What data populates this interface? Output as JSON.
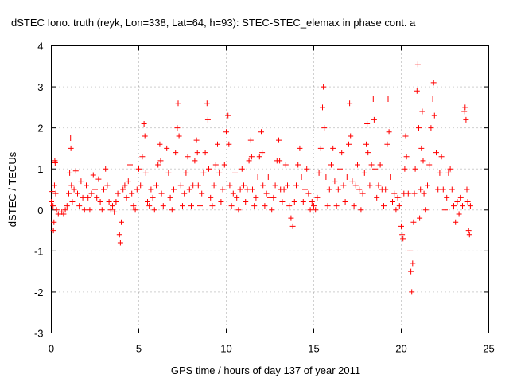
{
  "chart_data": {
    "type": "scatter",
    "title": "dSTEC Iono. truth (reyk, Lon=338, Lat=64, h=93): STEC-STEC_elemax in phase cont. a",
    "xlabel": "GPS time / hours of day 137 of year 2011",
    "ylabel": "dSTEC  / TECUs",
    "xlim": [
      0,
      25
    ],
    "ylim": [
      -3,
      4
    ],
    "xticks": [
      "0",
      "5",
      "10",
      "15",
      "20",
      "25"
    ],
    "yticks": [
      "-3",
      "-2",
      "-1",
      "0",
      "1",
      "2",
      "3",
      "4"
    ],
    "grid": true,
    "marker": "+",
    "series": [
      {
        "color": "#ff0000",
        "points": [
          [
            0.0,
            0.2
          ],
          [
            0.05,
            0.45
          ],
          [
            0.1,
            0.1
          ],
          [
            0.12,
            -0.5
          ],
          [
            0.15,
            -0.3
          ],
          [
            0.18,
            0.6
          ],
          [
            0.2,
            1.2
          ],
          [
            0.22,
            1.15
          ],
          [
            0.25,
            0.4
          ],
          [
            0.3,
            0.0
          ],
          [
            0.4,
            -0.1
          ],
          [
            0.5,
            -0.15
          ],
          [
            0.6,
            -0.05
          ],
          [
            0.7,
            -0.1
          ],
          [
            0.8,
            0.0
          ],
          [
            0.9,
            0.1
          ],
          [
            1.0,
            0.4
          ],
          [
            1.05,
            0.9
          ],
          [
            1.1,
            1.75
          ],
          [
            1.12,
            1.5
          ],
          [
            1.15,
            0.6
          ],
          [
            1.2,
            0.2
          ],
          [
            1.3,
            0.5
          ],
          [
            1.4,
            0.95
          ],
          [
            1.5,
            0.4
          ],
          [
            1.6,
            0.1
          ],
          [
            1.7,
            0.7
          ],
          [
            1.8,
            0.3
          ],
          [
            1.9,
            0.0
          ],
          [
            2.0,
            0.6
          ],
          [
            2.1,
            0.3
          ],
          [
            2.2,
            0.0
          ],
          [
            2.3,
            0.4
          ],
          [
            2.4,
            0.85
          ],
          [
            2.5,
            0.5
          ],
          [
            2.6,
            0.3
          ],
          [
            2.7,
            0.75
          ],
          [
            2.8,
            0.2
          ],
          [
            2.9,
            0.0
          ],
          [
            3.0,
            0.5
          ],
          [
            3.1,
            1.0
          ],
          [
            3.2,
            0.6
          ],
          [
            3.3,
            0.2
          ],
          [
            3.4,
            0.0
          ],
          [
            3.5,
            0.1
          ],
          [
            3.6,
            -0.05
          ],
          [
            3.7,
            0.2
          ],
          [
            3.8,
            0.4
          ],
          [
            3.9,
            -0.6
          ],
          [
            3.95,
            -0.8
          ],
          [
            4.0,
            -0.3
          ],
          [
            4.1,
            0.5
          ],
          [
            4.2,
            0.6
          ],
          [
            4.3,
            0.3
          ],
          [
            4.4,
            0.7
          ],
          [
            4.5,
            1.1
          ],
          [
            4.6,
            0.4
          ],
          [
            4.7,
            0.1
          ],
          [
            4.8,
            0.0
          ],
          [
            4.9,
            0.5
          ],
          [
            5.0,
            1.0
          ],
          [
            5.1,
            0.6
          ],
          [
            5.2,
            1.3
          ],
          [
            5.3,
            2.1
          ],
          [
            5.35,
            1.8
          ],
          [
            5.4,
            0.9
          ],
          [
            5.5,
            0.2
          ],
          [
            5.6,
            0.1
          ],
          [
            5.7,
            0.5
          ],
          [
            5.8,
            0.3
          ],
          [
            5.9,
            0.0
          ],
          [
            6.0,
            0.6
          ],
          [
            6.1,
            1.1
          ],
          [
            6.2,
            1.6
          ],
          [
            6.25,
            1.2
          ],
          [
            6.3,
            0.4
          ],
          [
            6.4,
            0.1
          ],
          [
            6.5,
            0.8
          ],
          [
            6.6,
            1.5
          ],
          [
            6.7,
            0.9
          ],
          [
            6.8,
            0.3
          ],
          [
            6.9,
            0.0
          ],
          [
            7.0,
            0.5
          ],
          [
            7.1,
            1.4
          ],
          [
            7.2,
            2.0
          ],
          [
            7.25,
            2.6
          ],
          [
            7.3,
            1.8
          ],
          [
            7.4,
            0.6
          ],
          [
            7.5,
            0.1
          ],
          [
            7.6,
            0.4
          ],
          [
            7.7,
            0.9
          ],
          [
            7.8,
            1.3
          ],
          [
            7.9,
            0.5
          ],
          [
            8.0,
            0.1
          ],
          [
            8.1,
            0.6
          ],
          [
            8.2,
            1.2
          ],
          [
            8.3,
            1.7
          ],
          [
            8.35,
            1.4
          ],
          [
            8.4,
            0.6
          ],
          [
            8.5,
            0.1
          ],
          [
            8.6,
            0.4
          ],
          [
            8.7,
            0.9
          ],
          [
            8.8,
            1.4
          ],
          [
            8.9,
            2.6
          ],
          [
            8.95,
            2.2
          ],
          [
            9.0,
            1.0
          ],
          [
            9.1,
            0.3
          ],
          [
            9.2,
            0.1
          ],
          [
            9.3,
            0.6
          ],
          [
            9.4,
            1.1
          ],
          [
            9.5,
            1.6
          ],
          [
            9.6,
            0.9
          ],
          [
            9.7,
            0.2
          ],
          [
            9.8,
            0.5
          ],
          [
            9.9,
            1.1
          ],
          [
            10.0,
            1.9
          ],
          [
            10.1,
            2.3
          ],
          [
            10.15,
            1.6
          ],
          [
            10.2,
            0.6
          ],
          [
            10.3,
            0.1
          ],
          [
            10.4,
            0.4
          ],
          [
            10.5,
            0.9
          ],
          [
            10.6,
            0.3
          ],
          [
            10.7,
            0.0
          ],
          [
            10.8,
            0.5
          ],
          [
            10.9,
            1.0
          ],
          [
            11.0,
            0.6
          ],
          [
            11.1,
            0.2
          ],
          [
            11.2,
            0.5
          ],
          [
            11.3,
            1.2
          ],
          [
            11.4,
            1.7
          ],
          [
            11.45,
            1.3
          ],
          [
            11.5,
            0.5
          ],
          [
            11.6,
            0.1
          ],
          [
            11.7,
            0.3
          ],
          [
            11.8,
            0.8
          ],
          [
            11.9,
            1.3
          ],
          [
            12.0,
            1.9
          ],
          [
            12.05,
            1.4
          ],
          [
            12.1,
            0.6
          ],
          [
            12.2,
            0.1
          ],
          [
            12.3,
            0.4
          ],
          [
            12.4,
            0.8
          ],
          [
            12.5,
            0.3
          ],
          [
            12.6,
            0.0
          ],
          [
            12.7,
            0.3
          ],
          [
            12.8,
            0.6
          ],
          [
            12.9,
            1.2
          ],
          [
            13.0,
            1.7
          ],
          [
            13.05,
            1.2
          ],
          [
            13.1,
            0.5
          ],
          [
            13.2,
            0.2
          ],
          [
            13.3,
            0.5
          ],
          [
            13.4,
            1.1
          ],
          [
            13.5,
            0.6
          ],
          [
            13.6,
            0.1
          ],
          [
            13.7,
            -0.2
          ],
          [
            13.8,
            -0.4
          ],
          [
            13.9,
            0.2
          ],
          [
            14.0,
            0.6
          ],
          [
            14.1,
            1.1
          ],
          [
            14.2,
            1.5
          ],
          [
            14.3,
            0.8
          ],
          [
            14.4,
            0.2
          ],
          [
            14.5,
            0.5
          ],
          [
            14.6,
            1.0
          ],
          [
            14.7,
            0.4
          ],
          [
            14.8,
            0.0
          ],
          [
            14.9,
            0.2
          ],
          [
            15.0,
            0.1
          ],
          [
            15.1,
            0.0
          ],
          [
            15.2,
            0.3
          ],
          [
            15.3,
            0.9
          ],
          [
            15.4,
            1.5
          ],
          [
            15.5,
            2.5
          ],
          [
            15.55,
            3.0
          ],
          [
            15.6,
            2.0
          ],
          [
            15.7,
            0.8
          ],
          [
            15.8,
            0.1
          ],
          [
            15.9,
            0.5
          ],
          [
            16.0,
            1.1
          ],
          [
            16.1,
            1.5
          ],
          [
            16.2,
            0.7
          ],
          [
            16.3,
            0.1
          ],
          [
            16.4,
            0.5
          ],
          [
            16.5,
            1.0
          ],
          [
            16.6,
            1.4
          ],
          [
            16.7,
            0.6
          ],
          [
            16.8,
            0.2
          ],
          [
            16.9,
            0.8
          ],
          [
            17.0,
            1.6
          ],
          [
            17.05,
            2.6
          ],
          [
            17.1,
            1.8
          ],
          [
            17.2,
            0.7
          ],
          [
            17.3,
            0.1
          ],
          [
            17.4,
            0.6
          ],
          [
            17.5,
            1.1
          ],
          [
            17.6,
            0.5
          ],
          [
            17.7,
            0.0
          ],
          [
            17.8,
            0.4
          ],
          [
            17.9,
            0.9
          ],
          [
            18.0,
            1.6
          ],
          [
            18.05,
            2.1
          ],
          [
            18.1,
            1.4
          ],
          [
            18.2,
            0.6
          ],
          [
            18.3,
            1.1
          ],
          [
            18.4,
            2.7
          ],
          [
            18.45,
            2.2
          ],
          [
            18.5,
            1.0
          ],
          [
            18.6,
            0.3
          ],
          [
            18.7,
            0.6
          ],
          [
            18.8,
            1.1
          ],
          [
            18.9,
            0.5
          ],
          [
            19.0,
            0.1
          ],
          [
            19.1,
            0.5
          ],
          [
            19.2,
            1.6
          ],
          [
            19.25,
            2.7
          ],
          [
            19.3,
            1.9
          ],
          [
            19.4,
            0.8
          ],
          [
            19.5,
            0.2
          ],
          [
            19.6,
            0.4
          ],
          [
            19.7,
            0.0
          ],
          [
            19.8,
            0.3
          ],
          [
            19.9,
            0.1
          ],
          [
            20.0,
            -0.4
          ],
          [
            20.05,
            -0.6
          ],
          [
            20.1,
            -0.7
          ],
          [
            20.15,
            0.4
          ],
          [
            20.2,
            1.0
          ],
          [
            20.25,
            1.8
          ],
          [
            20.3,
            1.3
          ],
          [
            20.4,
            0.4
          ],
          [
            20.5,
            -1.0
          ],
          [
            20.55,
            -1.5
          ],
          [
            20.6,
            -2.0
          ],
          [
            20.65,
            -1.3
          ],
          [
            20.7,
            -0.3
          ],
          [
            20.75,
            0.4
          ],
          [
            20.8,
            1.0
          ],
          [
            20.9,
            2.9
          ],
          [
            20.95,
            3.55
          ],
          [
            21.0,
            2.0
          ],
          [
            21.05,
            -0.2
          ],
          [
            21.1,
            0.5
          ],
          [
            21.15,
            1.5
          ],
          [
            21.2,
            2.4
          ],
          [
            21.25,
            1.2
          ],
          [
            21.3,
            0.4
          ],
          [
            21.4,
            0.0
          ],
          [
            21.5,
            0.6
          ],
          [
            21.6,
            1.1
          ],
          [
            21.7,
            2.0
          ],
          [
            21.8,
            2.7
          ],
          [
            21.85,
            3.1
          ],
          [
            21.9,
            2.3
          ],
          [
            22.0,
            1.4
          ],
          [
            22.1,
            0.5
          ],
          [
            22.2,
            0.9
          ],
          [
            22.3,
            1.3
          ],
          [
            22.4,
            0.5
          ],
          [
            22.5,
            0.0
          ],
          [
            22.6,
            0.3
          ],
          [
            22.7,
            0.9
          ],
          [
            22.8,
            1.0
          ],
          [
            22.9,
            0.5
          ],
          [
            23.0,
            0.1
          ],
          [
            23.1,
            -0.3
          ],
          [
            23.2,
            0.2
          ],
          [
            23.3,
            -0.1
          ],
          [
            23.4,
            0.3
          ],
          [
            23.5,
            0.1
          ],
          [
            23.6,
            2.4
          ],
          [
            23.65,
            2.5
          ],
          [
            23.7,
            2.2
          ],
          [
            23.75,
            0.5
          ],
          [
            23.8,
            0.2
          ],
          [
            23.85,
            -0.5
          ],
          [
            23.9,
            -0.6
          ],
          [
            23.95,
            0.1
          ]
        ]
      }
    ]
  }
}
